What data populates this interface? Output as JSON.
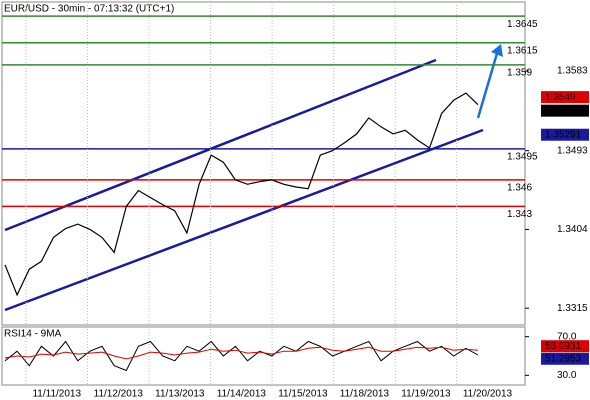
{
  "chart_data": {
    "type": "line",
    "title": "EUR/USD - 30min - 07:13:32 (UTC+1)",
    "categories": [
      "11/11/2013",
      "11/12/2013",
      "11/13/2013",
      "11/14/2013",
      "11/15/2013",
      "11/18/2013",
      "11/19/2013",
      "11/20/2013"
    ],
    "ylim": [
      1.3296,
      1.3661
    ],
    "yticks": [
      1.3315,
      1.3404,
      1.3493,
      1.3583
    ],
    "price": {
      "color": "#000000",
      "values": [
        1.3364,
        1.333,
        1.3359,
        1.3368,
        1.3395,
        1.3405,
        1.341,
        1.3404,
        1.3395,
        1.3378,
        1.343,
        1.3448,
        1.344,
        1.3432,
        1.3425,
        1.34,
        1.3455,
        1.3488,
        1.348,
        1.346,
        1.3455,
        1.3458,
        1.346,
        1.3455,
        1.3452,
        1.345,
        1.3488,
        1.3493,
        1.3502,
        1.3512,
        1.353,
        1.352,
        1.3512,
        1.3516,
        1.3505,
        1.3496,
        1.3535,
        1.355,
        1.3558,
        1.3545
      ]
    },
    "levels": {
      "values": [
        1.3645,
        1.3615,
        1.359,
        1.3495,
        1.346,
        1.343
      ],
      "colors": [
        "#2e8b2e",
        "#2e8b2e",
        "#2e8b2e",
        "#1a1aa0",
        "#e00000",
        "#e00000"
      ]
    },
    "price_boxes": {
      "values": [
        1.3549,
        1.3545,
        1.35291
      ],
      "value_labels": [
        "1.3549",
        "1.3545",
        "1.35291"
      ],
      "colors": [
        "#e00000",
        "#000000",
        "#1a1aa0"
      ]
    },
    "rsi": {
      "label": "RSI14 - 9MA",
      "ylim": [
        20,
        80
      ],
      "yticks": [
        {
          "value": 30,
          "label": "30.0"
        },
        {
          "value": 70,
          "label": "70.0"
        }
      ],
      "series": [
        {
          "color": "#000000",
          "values": [
            45,
            55,
            40,
            60,
            50,
            65,
            45,
            55,
            60,
            40,
            35,
            60,
            65,
            50,
            45,
            60,
            55,
            65,
            50,
            60,
            45,
            55,
            50,
            60,
            55,
            65,
            60,
            50,
            55,
            60,
            65,
            45,
            55,
            60,
            65,
            55,
            60,
            50,
            58,
            51
          ]
        },
        {
          "color": "#e00000",
          "values": [
            48,
            50,
            49,
            52,
            51,
            54,
            52,
            53,
            54,
            50,
            47,
            50,
            54,
            53,
            51,
            53,
            54,
            57,
            55,
            56,
            53,
            54,
            52,
            55,
            55,
            58,
            59,
            56,
            55,
            57,
            59,
            55,
            55,
            57,
            59,
            58,
            59,
            56,
            57,
            56
          ]
        }
      ],
      "boxes": {
        "values": [
          58.0931,
          51.2953
        ],
        "colors": [
          "#e00000",
          "#1a1aa0"
        ]
      }
    }
  }
}
